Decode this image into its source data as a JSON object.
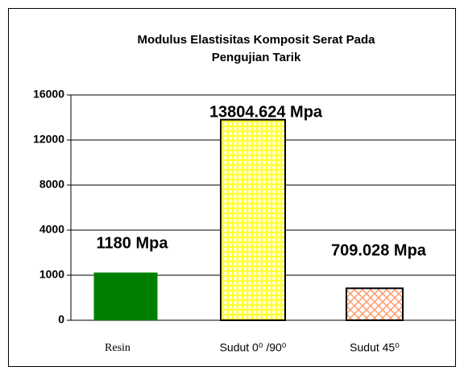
{
  "chart_data": {
    "type": "bar",
    "title": [
      "Modulus Elastisitas Komposit Serat Pada",
      "Pengujian Tarik"
    ],
    "categories": [
      "Resin",
      "Sudut 0⁰ /90⁰",
      "Sudut 45⁰"
    ],
    "values": [
      1180,
      13804.624,
      709.028
    ],
    "value_labels": [
      "1180 Mpa",
      "13804.624 Mpa",
      "709.028 Mpa"
    ],
    "colors": [
      "#008000",
      "#ffff33",
      "#ff9966"
    ],
    "ylim": [
      0,
      16000
    ],
    "yticks": [
      0,
      1000,
      4000,
      8000,
      12000,
      16000
    ],
    "grid": true
  }
}
